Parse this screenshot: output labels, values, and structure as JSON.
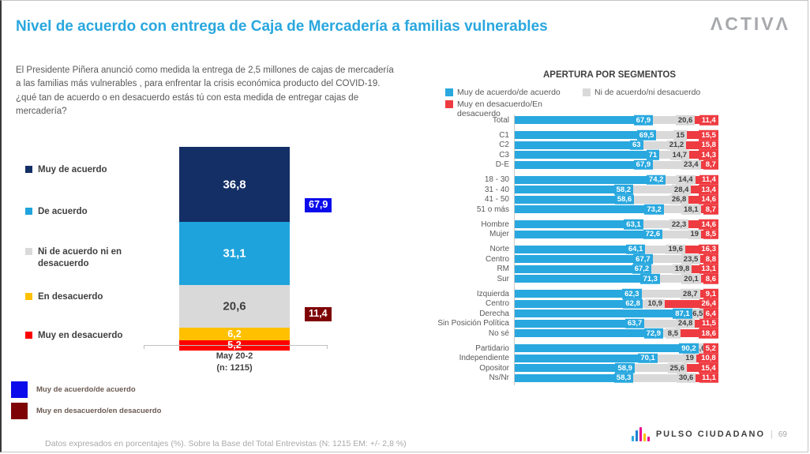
{
  "slide": {
    "title": "Nivel de acuerdo con entrega de Caja de Mercadería a familias vulnerables",
    "brand": "ΛCTIVΛ",
    "intro": "El Presidente Piñera anunció como medida la entrega de 2,5 millones de cajas de mercadería a las familias más vulnerables , para enfrentar la crisis económica producto del COVID-19. ¿qué tan de acuerdo o en desacuerdo estás tú con esta medida de entregar cajas de mercadería?",
    "footer_note": "Datos expresados en porcentajes (%). Sobre la Base del Total Entrevistas (N: 1215  EM: +/- 2,8 %)",
    "footer_brand": "PULSO CIUDADANO",
    "page_number": "69"
  },
  "chart_data": [
    {
      "type": "bar",
      "variant": "stacked-column",
      "categories": [
        "May 20-2"
      ],
      "category_note": "(n: 1215)",
      "series": [
        {
          "name": "Muy de acuerdo",
          "value": 36.8,
          "label": "36,8",
          "color": "#142f66",
          "text_color": "#ffffff"
        },
        {
          "name": "De acuerdo",
          "value": 31.1,
          "label": "31,1",
          "color": "#1fa3dc",
          "text_color": "#ffffff"
        },
        {
          "name": "Ni de acuerdo ni en desacuerdo",
          "value": 20.6,
          "label": "20,6",
          "color": "#d9d9d9",
          "text_color": "#3f3f3f"
        },
        {
          "name": "En desacuerdo",
          "value": 6.2,
          "label": "6,2",
          "color": "#ffc000",
          "text_color": "#ffffff"
        },
        {
          "name": "Muy en desacuerdo",
          "value": 5.2,
          "label": "5,2",
          "color": "#ff0000",
          "text_color": "#ffffff"
        }
      ],
      "net_badges": [
        {
          "name": "Muy de acuerdo/de acuerdo",
          "label": "67,9",
          "color": "#0b0beb"
        },
        {
          "name": "Muy en desacuerdo/en desacuerdo",
          "label": "11,4",
          "color": "#7e0305"
        }
      ]
    },
    {
      "type": "bar",
      "variant": "stacked-horizontal",
      "title": "APERTURA POR SEGMENTOS",
      "xlim": [
        0,
        100
      ],
      "legend": [
        {
          "label": "Muy de acuerdo/de acuerdo",
          "color": "#29a8df"
        },
        {
          "label": "Ni de acuerdo/ni desacuerdo",
          "color": "#d9d9d9"
        },
        {
          "label": "Muy en desacuerdo/En desacuerdo",
          "color": "#ee3b41"
        }
      ],
      "groups": [
        {
          "rows": [
            {
              "label": "Total",
              "values": [
                "67,9",
                "20,6",
                "11,4"
              ]
            }
          ]
        },
        {
          "rows": [
            {
              "label": "C1",
              "values": [
                "69,5",
                "15",
                "15,5"
              ]
            },
            {
              "label": "C2",
              "values": [
                "63",
                "21,2",
                "15,8"
              ]
            },
            {
              "label": "C3",
              "values": [
                "71",
                "14,7",
                "14,3"
              ]
            },
            {
              "label": "D-E",
              "values": [
                "67,9",
                "23,4",
                "8,7"
              ]
            }
          ]
        },
        {
          "rows": [
            {
              "label": "18 - 30",
              "values": [
                "74,2",
                "14,4",
                "11,4"
              ]
            },
            {
              "label": "31 - 40",
              "values": [
                "58,2",
                "28,4",
                "13,4"
              ]
            },
            {
              "label": "41 - 50",
              "values": [
                "58,6",
                "26,8",
                "14,6"
              ]
            },
            {
              "label": "51 o más",
              "values": [
                "73,2",
                "18,1",
                "8,7"
              ]
            }
          ]
        },
        {
          "rows": [
            {
              "label": "Hombre",
              "values": [
                "63,1",
                "22,3",
                "14,6"
              ]
            },
            {
              "label": "Mujer",
              "values": [
                "72,6",
                "19",
                "8,5"
              ]
            }
          ]
        },
        {
          "rows": [
            {
              "label": "Norte",
              "values": [
                "64,1",
                "19,6",
                "16,3"
              ]
            },
            {
              "label": "Centro",
              "values": [
                "67,7",
                "23,5",
                "8,8"
              ]
            },
            {
              "label": "RM",
              "values": [
                "67,2",
                "19,8",
                "13,1"
              ]
            },
            {
              "label": "Sur",
              "values": [
                "71,3",
                "20,1",
                "8,6"
              ]
            }
          ]
        },
        {
          "rows": [
            {
              "label": "Izquierda",
              "values": [
                "62,3",
                "28,7",
                "9,1"
              ]
            },
            {
              "label": "Centro",
              "values": [
                "62,8",
                "10,9",
                "26,4"
              ]
            },
            {
              "label": "Derecha",
              "values": [
                "87,1",
                "6,5",
                "6,4"
              ]
            },
            {
              "label": "Sin Posición Política",
              "values": [
                "63,7",
                "24,8",
                "11,5"
              ]
            },
            {
              "label": "No sé",
              "values": [
                "72,9",
                "8,5",
                "18,6"
              ]
            }
          ]
        },
        {
          "rows": [
            {
              "label": "Partidario",
              "values": [
                "90,2",
                "4,6",
                "5,2"
              ]
            },
            {
              "label": "Independiente",
              "values": [
                "70,1",
                "19",
                "10,8"
              ]
            },
            {
              "label": "Opositor",
              "values": [
                "58,9",
                "25,6",
                "15,4"
              ]
            },
            {
              "label": "Ns/Nr",
              "values": [
                "58,3",
                "30,6",
                "11,1"
              ]
            }
          ]
        }
      ]
    }
  ],
  "net_legend": [
    {
      "label": "Muy de acuerdo/de acuerdo",
      "color": "#0b0beb"
    },
    {
      "label": "Muy en desacuerdo/en desacuerdo",
      "color": "#7e0305"
    }
  ],
  "pulso_icon_colors": [
    "#29abe2",
    "#1e7fd0",
    "#ec008c",
    "#ffc000",
    "#ec008c"
  ]
}
